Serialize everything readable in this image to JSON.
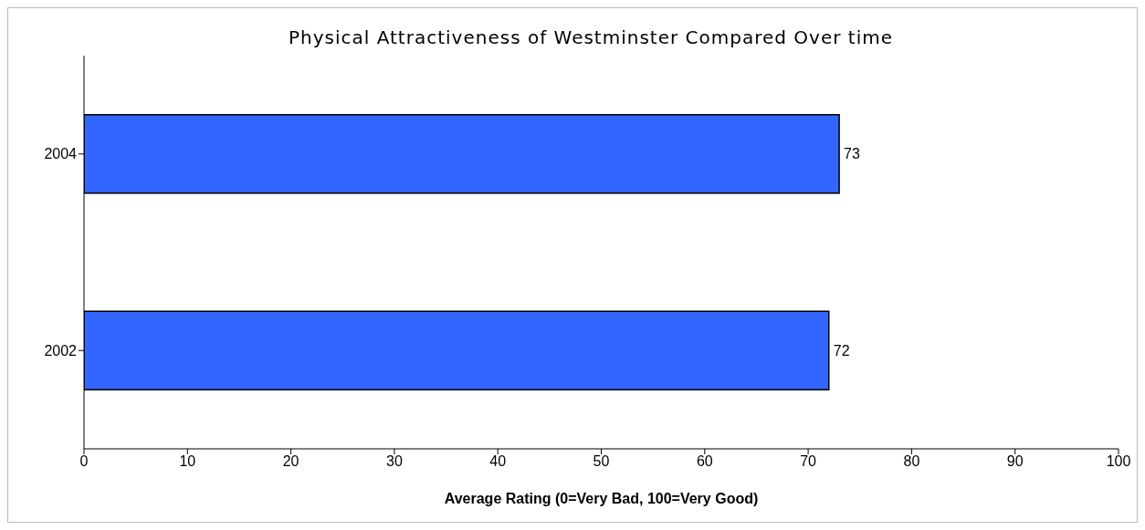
{
  "chart_data": {
    "type": "bar",
    "orientation": "horizontal",
    "title": "Physical Attractiveness of Westminster Compared Over time",
    "xlabel": "Average Rating (0=Very Bad, 100=Very Good)",
    "categories": [
      "2004",
      "2002"
    ],
    "values": [
      73,
      72
    ],
    "color": "#3366ff",
    "xlim": [
      0,
      100
    ],
    "xticks": [
      0,
      10,
      20,
      30,
      40,
      50,
      60,
      70,
      80,
      90,
      100
    ],
    "data_labels": true,
    "grid": false,
    "legend": false
  }
}
